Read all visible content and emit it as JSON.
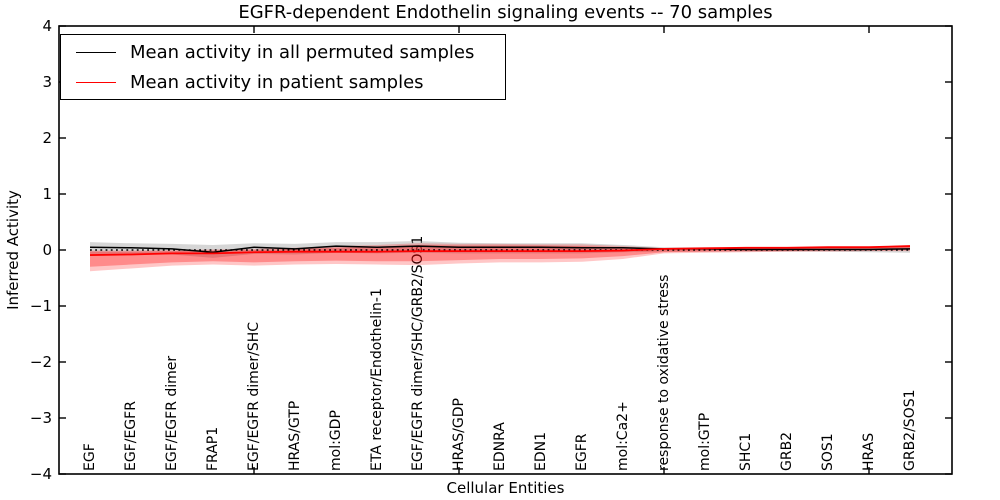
{
  "figure": {
    "title": "EGFR-dependent Endothelin signaling events -- 70 samples",
    "xlabel": "Cellular Entities",
    "ylabel": "Inferred Activity"
  },
  "legend": {
    "position": "upper left",
    "entries": [
      {
        "label": "Mean activity in all permuted samples",
        "color": "#000000"
      },
      {
        "label": "Mean activity in patient samples",
        "color": "#ff0000"
      }
    ]
  },
  "chart_data": {
    "type": "line",
    "title": "EGFR-dependent Endothelin signaling events -- 70 samples",
    "xlabel": "Cellular Entities",
    "ylabel": "Inferred Activity",
    "ylim": [
      -4,
      4
    ],
    "yticks": [
      -4,
      -3,
      -2,
      -1,
      0,
      1,
      2,
      3,
      4
    ],
    "x_major_tick_indices": [
      4,
      9,
      14,
      19
    ],
    "grid": false,
    "legend_position": "upper left",
    "categories": [
      "EGF",
      "EGF/EGFR",
      "EGF/EGFR dimer",
      "FRAP1",
      "EGF/EGFR dimer/SHC",
      "HRAS/GTP",
      "mol:GDP",
      "ETA receptor/Endothelin-1",
      "EGF/EGFR dimer/SHC/GRB2/SOS1",
      "HRAS/GDP",
      "EDNRA",
      "EDN1",
      "EGFR",
      "mol:Ca2+",
      "response to oxidative stress",
      "mol:GTP",
      "SHC1",
      "GRB2",
      "SOS1",
      "HRAS",
      "GRB2/SOS1"
    ],
    "reference_line": {
      "y": 0,
      "style": "dotted",
      "color": "#000000"
    },
    "series": [
      {
        "name": "Mean activity in all permuted samples",
        "color": "#000000",
        "values": [
          0.05,
          0.04,
          0.02,
          -0.04,
          0.05,
          0.02,
          0.07,
          0.05,
          0.07,
          0.05,
          0.05,
          0.05,
          0.04,
          0.04,
          0.02,
          0.02,
          0.01,
          0.01,
          0.01,
          0.01,
          0.02
        ]
      },
      {
        "name": "Mean activity in patient samples",
        "color": "#ff0000",
        "values": [
          -0.09,
          -0.08,
          -0.06,
          -0.06,
          -0.04,
          -0.03,
          -0.03,
          -0.03,
          -0.02,
          -0.02,
          -0.02,
          -0.02,
          -0.02,
          -0.01,
          0.02,
          0.03,
          0.04,
          0.04,
          0.05,
          0.05,
          0.07
        ]
      }
    ],
    "bands": [
      {
        "name": "permuted-samples-range",
        "color": "#999999",
        "alpha": 0.4,
        "upper": [
          0.14,
          0.12,
          0.11,
          0.09,
          0.12,
          0.11,
          0.14,
          0.14,
          0.16,
          0.13,
          0.12,
          0.12,
          0.12,
          0.09,
          0.05,
          0.05,
          0.05,
          0.05,
          0.05,
          0.06,
          0.08
        ],
        "lower": [
          -0.07,
          -0.07,
          -0.08,
          -0.14,
          -0.07,
          -0.08,
          -0.05,
          -0.06,
          -0.05,
          -0.06,
          -0.06,
          -0.06,
          -0.06,
          -0.04,
          -0.03,
          -0.03,
          -0.03,
          -0.03,
          -0.03,
          -0.04,
          -0.05
        ]
      },
      {
        "name": "patient-samples-outer-range",
        "color": "#ff0000",
        "alpha": 0.22,
        "upper": [
          -0.01,
          -0.01,
          0.0,
          0.01,
          0.02,
          0.04,
          0.07,
          0.09,
          0.12,
          0.11,
          0.11,
          0.1,
          0.1,
          0.07,
          0.03,
          0.03,
          0.04,
          0.05,
          0.05,
          0.06,
          0.08
        ],
        "lower": [
          -0.38,
          -0.33,
          -0.28,
          -0.26,
          -0.28,
          -0.26,
          -0.25,
          -0.26,
          -0.27,
          -0.24,
          -0.22,
          -0.22,
          -0.21,
          -0.16,
          -0.06,
          -0.05,
          -0.04,
          -0.03,
          -0.03,
          -0.02,
          -0.02
        ]
      },
      {
        "name": "patient-samples-inner-range",
        "color": "#ff0000",
        "alpha": 0.3,
        "upper": [
          -0.03,
          -0.03,
          -0.02,
          -0.01,
          0.0,
          0.02,
          0.04,
          0.06,
          0.09,
          0.08,
          0.08,
          0.08,
          0.07,
          0.05,
          0.01,
          0.01,
          0.02,
          0.03,
          0.04,
          0.05,
          0.07
        ],
        "lower": [
          -0.3,
          -0.26,
          -0.22,
          -0.2,
          -0.22,
          -0.2,
          -0.19,
          -0.2,
          -0.2,
          -0.18,
          -0.16,
          -0.16,
          -0.15,
          -0.11,
          -0.04,
          -0.03,
          -0.02,
          -0.02,
          -0.01,
          -0.01,
          0.0
        ]
      }
    ]
  }
}
